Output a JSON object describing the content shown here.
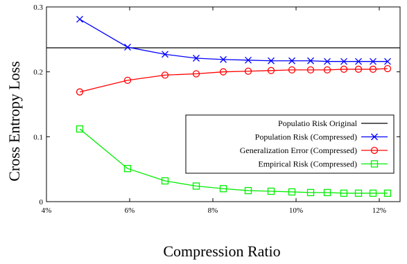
{
  "chart_data": {
    "type": "line",
    "xlabel": "Compression Ratio",
    "ylabel": "Cross Entropy Loss",
    "xlim": [
      0.04,
      0.125
    ],
    "ylim": [
      0,
      0.3
    ],
    "x_ticks": [
      0.04,
      0.06,
      0.08,
      0.1,
      0.12
    ],
    "x_tick_labels": [
      "4%",
      "6%",
      "8%",
      "10%",
      "12%"
    ],
    "y_ticks": [
      0,
      0.1,
      0.2,
      0.3
    ],
    "y_tick_labels": [
      "0",
      "0.1",
      "0.2",
      "0.3"
    ],
    "grid": false,
    "legend_position": "center-right",
    "x": [
      0.048,
      0.0595,
      0.0685,
      0.076,
      0.0825,
      0.0885,
      0.094,
      0.099,
      0.1035,
      0.1075,
      0.1115,
      0.115,
      0.1185,
      0.122
    ],
    "hline": {
      "name": "Populatio Risk Original",
      "y": 0.237,
      "color": "#000000"
    },
    "series": [
      {
        "name": "Population Risk (Compressed)",
        "color": "#0000ff",
        "marker": "x",
        "values": [
          0.281,
          0.238,
          0.227,
          0.221,
          0.219,
          0.218,
          0.217,
          0.217,
          0.217,
          0.216,
          0.216,
          0.216,
          0.216,
          0.216
        ]
      },
      {
        "name": "Generalization Error (Compressed)",
        "color": "#ff0000",
        "marker": "circle",
        "values": [
          0.169,
          0.187,
          0.195,
          0.197,
          0.2,
          0.201,
          0.202,
          0.203,
          0.203,
          0.203,
          0.204,
          0.204,
          0.204,
          0.205
        ]
      },
      {
        "name": "Empirical Risk (Compressed)",
        "color": "#00ee00",
        "marker": "square",
        "values": [
          0.112,
          0.051,
          0.032,
          0.024,
          0.02,
          0.017,
          0.016,
          0.015,
          0.014,
          0.014,
          0.013,
          0.013,
          0.013,
          0.013
        ]
      }
    ]
  }
}
